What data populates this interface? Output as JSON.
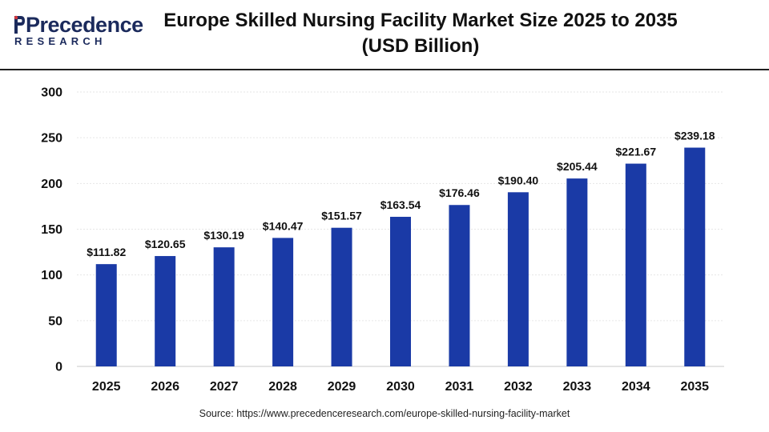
{
  "brand": {
    "name": "Precedence",
    "sub": "RESEARCH",
    "colors": {
      "navy": "#1b2a5c",
      "accent": "#d4373c"
    }
  },
  "title_line1": "Europe Skilled Nursing Facility Market Size 2025 to 2035",
  "title_line2": "(USD Billion)",
  "source": "Source: https://www.precedenceresearch.com/europe-skilled-nursing-facility-market",
  "chart_data": {
    "type": "bar",
    "categories": [
      "2025",
      "2026",
      "2027",
      "2028",
      "2029",
      "2030",
      "2031",
      "2032",
      "2033",
      "2034",
      "2035"
    ],
    "values": [
      111.82,
      120.65,
      130.19,
      140.47,
      151.57,
      163.54,
      176.46,
      190.4,
      205.44,
      221.67,
      239.18
    ],
    "labels": [
      "$111.82",
      "$120.65",
      "$130.19",
      "$140.47",
      "$151.57",
      "$163.54",
      "$176.46",
      "$190.40",
      "$205.44",
      "$221.67",
      "$239.18"
    ],
    "ylim": [
      0,
      300
    ],
    "yticks": [
      "0",
      "50",
      "100",
      "150",
      "200",
      "250",
      "300"
    ],
    "ytick_values": [
      0,
      50,
      100,
      150,
      200,
      250,
      300
    ],
    "grid": true,
    "bar_color": "#1a3aa6",
    "grid_color": "#e6e6e6"
  }
}
